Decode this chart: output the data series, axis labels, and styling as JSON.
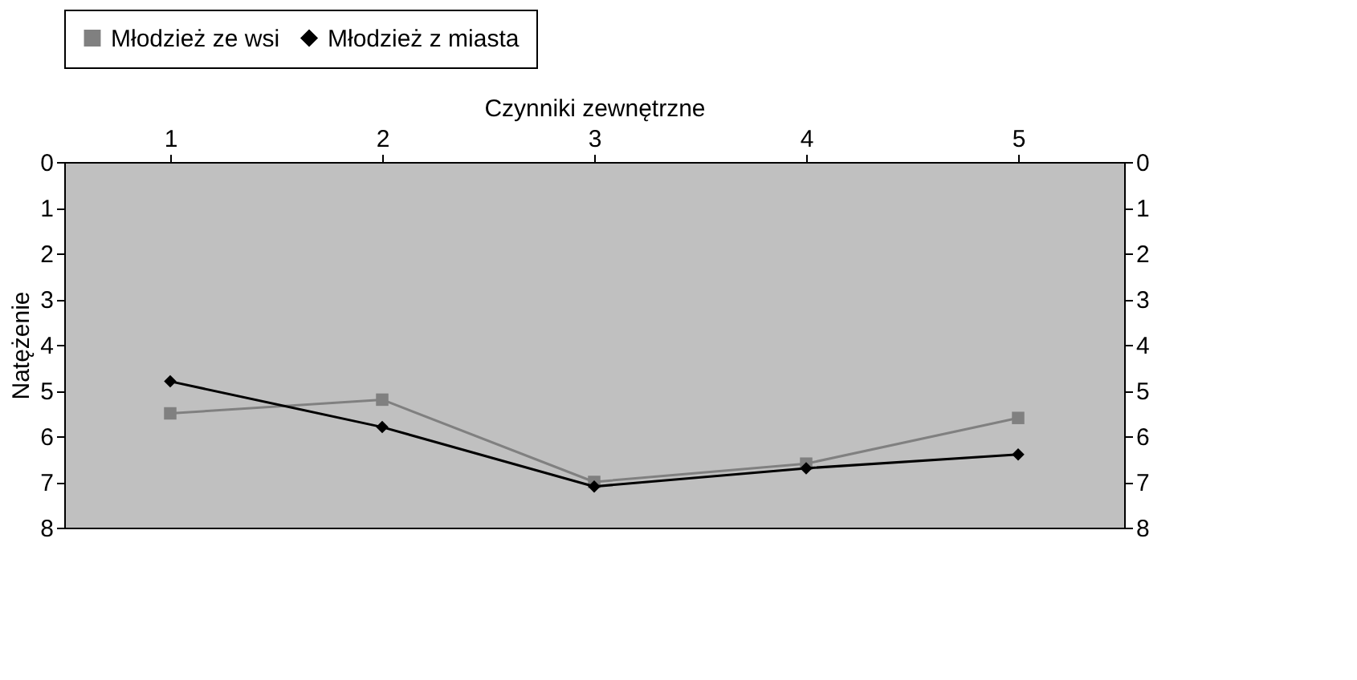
{
  "chart_data": {
    "type": "line",
    "xlabel": "Czynniki zewnętrzne",
    "ylabel": "Natężenie",
    "categories": [
      "1",
      "2",
      "3",
      "4",
      "5"
    ],
    "series": [
      {
        "name": "Młodzież ze wsi",
        "color": "#808080",
        "marker": "square",
        "values": [
          5.5,
          5.2,
          7.0,
          6.6,
          5.6
        ]
      },
      {
        "name": "Młodzież z miasta",
        "color": "#000000",
        "marker": "diamond",
        "values": [
          4.8,
          5.8,
          7.1,
          6.7,
          6.4
        ]
      }
    ],
    "ylim": [
      8,
      0
    ],
    "yticks": [
      0,
      1,
      2,
      3,
      4,
      5,
      6,
      7,
      8
    ],
    "y2lim": [
      8,
      0
    ],
    "y2ticks": [
      0,
      1,
      2,
      3,
      4,
      5,
      6,
      7,
      8
    ],
    "grid": false,
    "legend": "top"
  }
}
